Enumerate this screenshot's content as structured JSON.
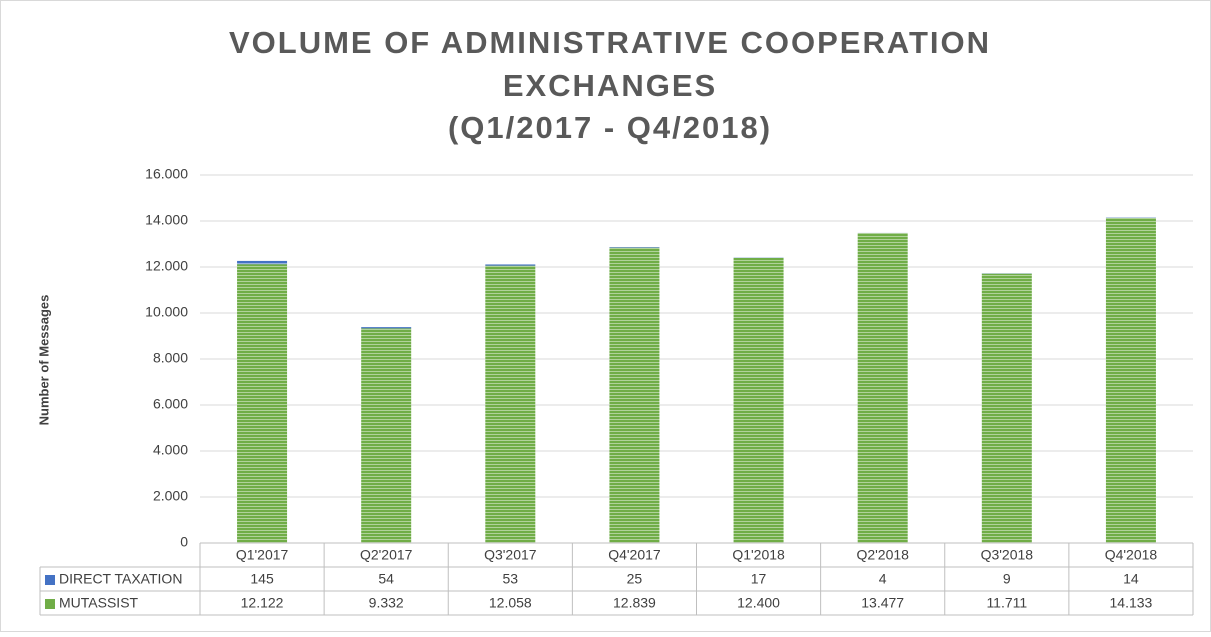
{
  "chart_data": {
    "type": "stacked_bar",
    "title": [
      "VOLUME OF ADMINISTRATIVE COOPERATION",
      "EXCHANGES",
      "(Q1/2017 - Q4/2018)"
    ],
    "y_label": "Number of Messages",
    "categories": [
      "Q1'2017",
      "Q2'2017",
      "Q3'2017",
      "Q4'2017",
      "Q1'2018",
      "Q2'2018",
      "Q3'2018",
      "Q4'2018"
    ],
    "series": [
      {
        "name": "DIRECT TAXATION",
        "color": "#4472c4",
        "values": [
          145,
          54,
          53,
          25,
          17,
          4,
          9,
          14
        ]
      },
      {
        "name": "MUTASSIST",
        "color": "#70ad47",
        "values": [
          12122,
          9332,
          12058,
          12839,
          12400,
          13477,
          11711,
          14133
        ],
        "value_labels": [
          "12.122",
          "9.332",
          "12.058",
          "12.839",
          "12.400",
          "13.477",
          "11.711",
          "14.133"
        ]
      }
    ],
    "ylim": [
      0,
      16000
    ],
    "yticks": [
      0,
      {
        "value": 2000,
        "label": "2.000"
      },
      {
        "value": 4000,
        "label": "4.000"
      },
      {
        "value": 6000,
        "label": "6.000"
      },
      {
        "value": 8000,
        "label": "8.000"
      },
      {
        "value": 10000,
        "label": "10.000"
      },
      {
        "value": 12000,
        "label": "12.000"
      },
      {
        "value": 14000,
        "label": "14.000"
      },
      {
        "value": 16000,
        "label": "16.000"
      }
    ],
    "grid": true
  }
}
